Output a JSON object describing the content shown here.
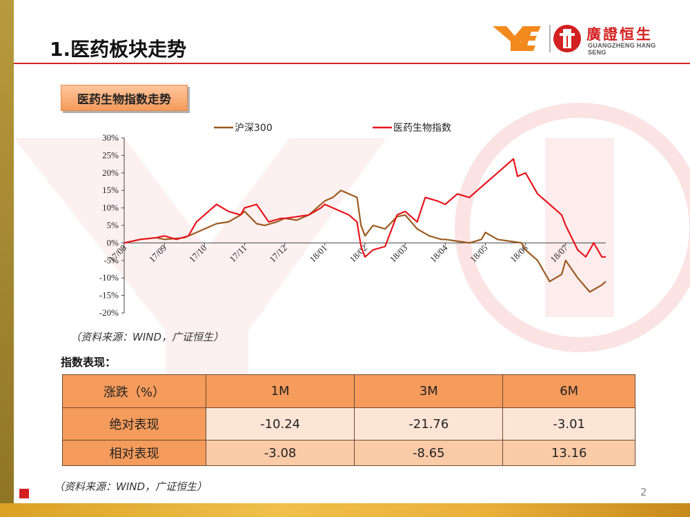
{
  "page": {
    "title": "1.医药板块走势",
    "section_label": "医药生物指数走势",
    "chart_source": "（资料来源：WIND，广证恒生）",
    "table_label": "指数表现：",
    "table_source": "（资料来源：WIND，广证恒生）",
    "page_number": "2"
  },
  "logo": {
    "brand_zh": "廣證恒生",
    "brand_en": "GUANGZHENG HANG SENG",
    "accent": "#d32020",
    "mark_color": "#f28a1e"
  },
  "colors": {
    "series_hs300": "#9b5a1e",
    "series_pharma": "#e8141b",
    "header_cell": "#f59b5b",
    "row_light": "#fde5d6",
    "row_mid": "#fbcaa7",
    "title_line": "#d32020"
  },
  "chart_data": {
    "type": "line",
    "title": "",
    "xlabel": "",
    "ylabel": "",
    "ylim": [
      -20,
      30
    ],
    "yticks": [
      "30%",
      "25%",
      "20%",
      "15%",
      "10%",
      "5%",
      "0%",
      "-5%",
      "-10%",
      "-15%",
      "-20%"
    ],
    "ytick_values": [
      30,
      25,
      20,
      15,
      10,
      5,
      0,
      -5,
      -10,
      -15,
      -20
    ],
    "categories": [
      "17/08",
      "17/09",
      "17/10",
      "17/11",
      "17/12",
      "18/01",
      "18/02",
      "18/03",
      "18/04",
      "18/05",
      "18/06",
      "18/07"
    ],
    "legend_position": "top",
    "series": [
      {
        "name": "沪深300",
        "color": "#9b5a1e",
        "x": [
          0,
          0.4,
          0.8,
          1.0,
          1.5,
          1.8,
          2.0,
          2.3,
          2.6,
          2.9,
          3.0,
          3.3,
          3.5,
          3.8,
          4.0,
          4.3,
          4.6,
          4.8,
          5.0,
          5.2,
          5.4,
          5.6,
          5.8,
          5.9,
          6.0,
          6.2,
          6.5,
          6.8,
          7.0,
          7.3,
          7.6,
          7.9,
          8.0,
          8.3,
          8.6,
          8.9,
          9.0,
          9.3,
          9.6,
          9.9,
          10.0,
          10.3,
          10.6,
          10.9,
          11.0,
          11.3,
          11.6,
          11.9,
          12.0
        ],
        "y": [
          0,
          1,
          1.5,
          1,
          1.5,
          3,
          4,
          5.5,
          6,
          8,
          9,
          5.5,
          5,
          6,
          7,
          6.5,
          8,
          10,
          12,
          13,
          15,
          14,
          13,
          5,
          2,
          5,
          4,
          7.5,
          8,
          4,
          2,
          1,
          1,
          0.5,
          0,
          1,
          3,
          1,
          0.5,
          0,
          -2,
          -5,
          -11,
          -9,
          -5,
          -10,
          -14,
          -12,
          -11
        ]
      },
      {
        "name": "医药生物指数",
        "color": "#e8141b",
        "x": [
          0,
          0.4,
          0.8,
          1.0,
          1.3,
          1.6,
          1.8,
          2.0,
          2.3,
          2.6,
          2.9,
          3.0,
          3.3,
          3.6,
          3.9,
          4.0,
          4.3,
          4.6,
          4.9,
          5.0,
          5.2,
          5.4,
          5.6,
          5.8,
          5.9,
          6.0,
          6.2,
          6.5,
          6.8,
          7.0,
          7.3,
          7.5,
          7.8,
          8.0,
          8.3,
          8.6,
          8.9,
          9.0,
          9.3,
          9.5,
          9.7,
          9.8,
          10.0,
          10.3,
          10.6,
          10.9,
          11.0,
          11.3,
          11.5,
          11.7,
          11.9,
          12.0
        ],
        "y": [
          0,
          1,
          1.5,
          2,
          1,
          2,
          6,
          8,
          11,
          9,
          8,
          10,
          11,
          6,
          7,
          7,
          7.5,
          8,
          10,
          11,
          10,
          9,
          8,
          6,
          -1,
          -4,
          -2,
          -1,
          8,
          9,
          6,
          13,
          12,
          11,
          14,
          13,
          16,
          17,
          20,
          22,
          24,
          19,
          20,
          14,
          11,
          8,
          5,
          -2,
          -4,
          0,
          -4,
          -4
        ]
      }
    ]
  },
  "table": {
    "headers": [
      "涨跌（%）",
      "1M",
      "3M",
      "6M"
    ],
    "rows": [
      {
        "label": "绝对表现",
        "values": [
          "-10.24",
          "-21.76",
          "-3.01"
        ]
      },
      {
        "label": "相对表现",
        "values": [
          "-3.08",
          "-8.65",
          "13.16"
        ]
      }
    ]
  }
}
